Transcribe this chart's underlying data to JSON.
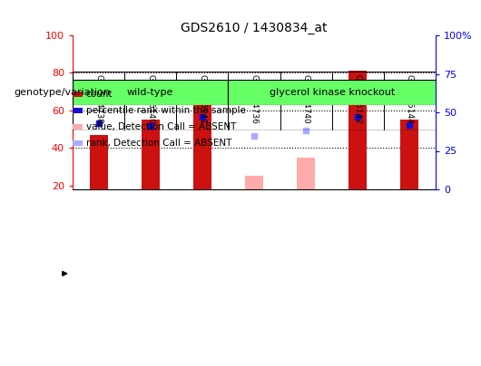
{
  "title": "GDS2610 / 1430834_at",
  "samples": [
    "GSM104738",
    "GSM105140",
    "GSM105141",
    "GSM104736",
    "GSM104740",
    "GSM105142",
    "GSM105144"
  ],
  "count_values": [
    47,
    55,
    75,
    null,
    null,
    81,
    55
  ],
  "percentile_values": [
    43,
    41,
    47,
    null,
    null,
    47,
    42
  ],
  "absent_value": [
    null,
    null,
    null,
    25,
    35,
    null,
    null
  ],
  "absent_rank": [
    null,
    null,
    null,
    35,
    38,
    null,
    null
  ],
  "groups": [
    {
      "label": "wild-type",
      "indices": [
        0,
        1,
        2
      ],
      "color": "#66ff66"
    },
    {
      "label": "glycerol kinase knockout",
      "indices": [
        3,
        4,
        5,
        6
      ],
      "color": "#66ff66"
    }
  ],
  "ylim_left": [
    18,
    100
  ],
  "ylim_right": [
    0,
    100
  ],
  "yticks_left": [
    20,
    40,
    60,
    80,
    100
  ],
  "ytick_labels_left": [
    "20",
    "40",
    "60",
    "80",
    "100"
  ],
  "yticks_right": [
    0,
    25,
    50,
    75,
    100
  ],
  "ytick_labels_right": [
    "0",
    "25",
    "50",
    "75",
    "100%"
  ],
  "bar_color_count": "#cc1111",
  "bar_color_percentile": "#1111cc",
  "bar_color_absent_value": "#ffaaaa",
  "bar_color_absent_rank": "#aaaaff",
  "bar_width": 0.35,
  "background_color": "#ffffff",
  "grid_color": "#000000",
  "legend_items": [
    {
      "color": "#cc1111",
      "label": "count"
    },
    {
      "color": "#1111cc",
      "label": "percentile rank within the sample"
    },
    {
      "color": "#ffaaaa",
      "label": "value, Detection Call = ABSENT"
    },
    {
      "color": "#aaaaff",
      "label": "rank, Detection Call = ABSENT"
    }
  ]
}
